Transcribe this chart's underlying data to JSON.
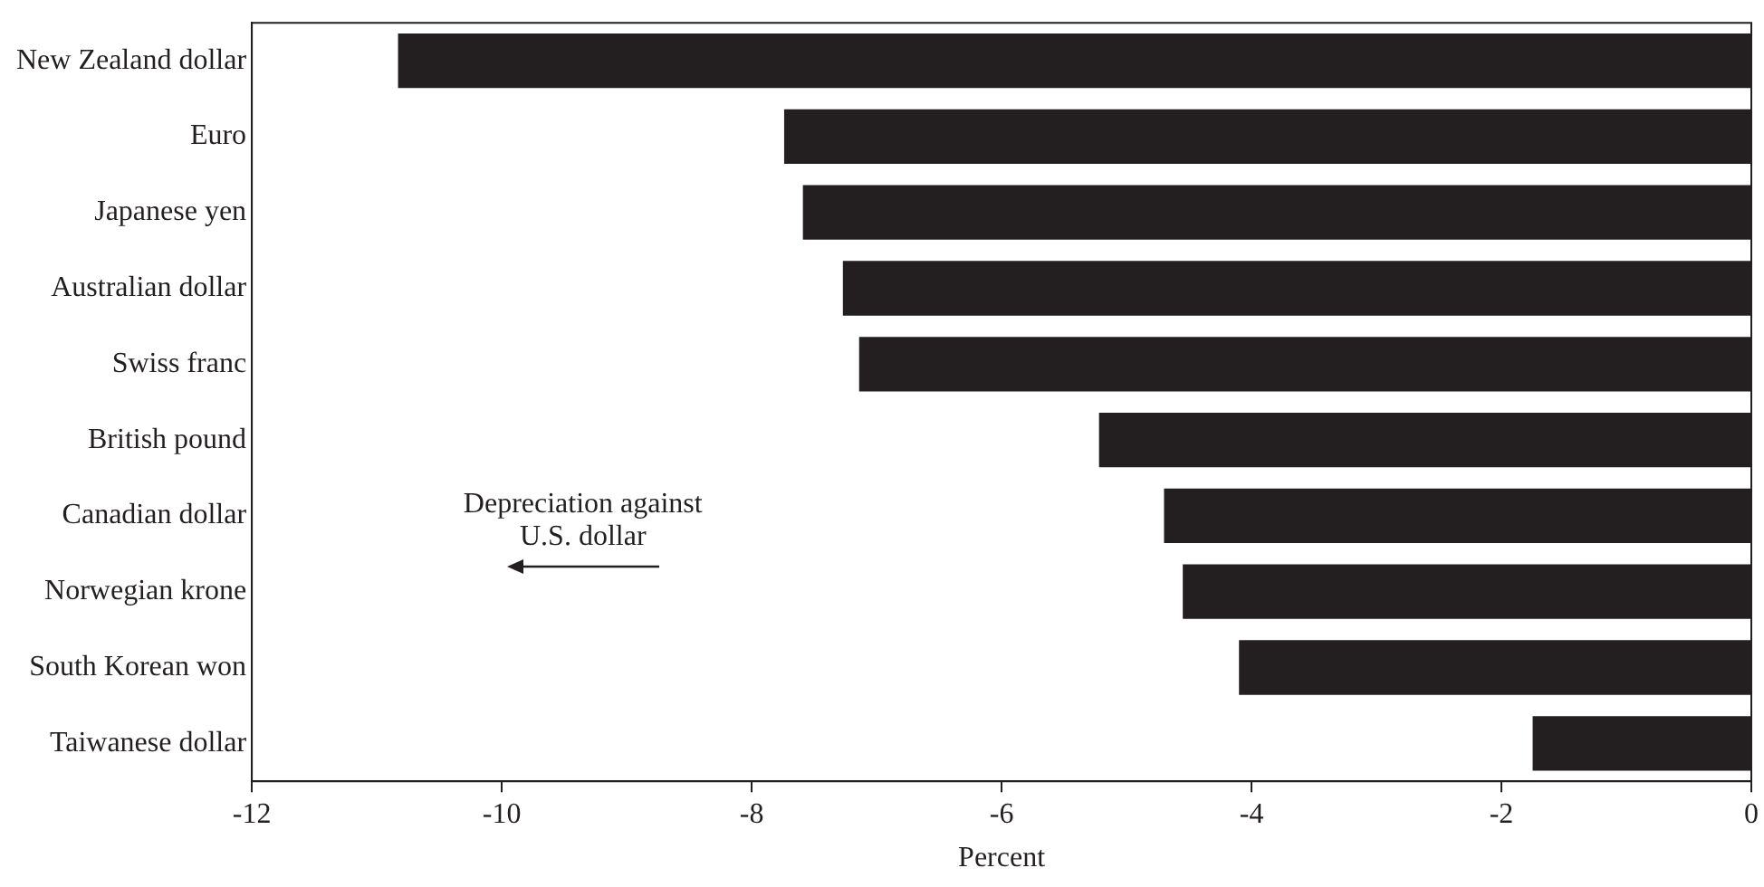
{
  "chart_data": {
    "type": "bar",
    "orientation": "horizontal",
    "xlabel": "Percent",
    "categories": [
      "New Zealand dollar",
      "Euro",
      "Japanese yen",
      "Australian dollar",
      "Swiss franc",
      "British pound",
      "Canadian dollar",
      "Norwegian krone",
      "South Korean won",
      "Taiwanese dollar"
    ],
    "values": [
      -10.83,
      -7.74,
      -7.59,
      -7.27,
      -7.14,
      -5.22,
      -4.7,
      -4.55,
      -4.1,
      -1.75
    ],
    "color": "#231f20",
    "xlim": [
      -12,
      0
    ],
    "xticks": [
      -12,
      -10,
      -8,
      -6,
      -4,
      -2,
      0
    ],
    "grid": false,
    "legend": false,
    "annotations": [
      "Depreciation against U.S. dollar"
    ]
  }
}
